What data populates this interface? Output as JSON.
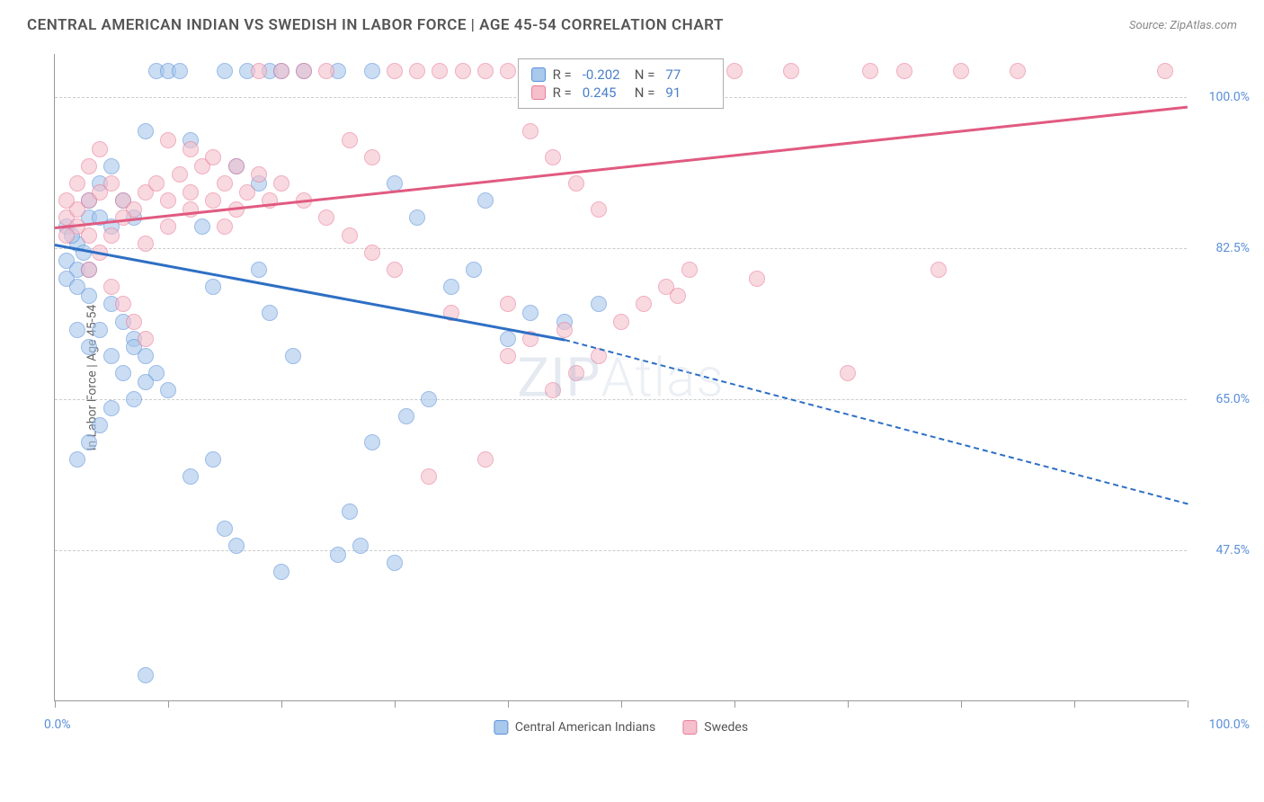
{
  "title": "CENTRAL AMERICAN INDIAN VS SWEDISH IN LABOR FORCE | AGE 45-54 CORRELATION CHART",
  "source": "Source: ZipAtlas.com",
  "yaxis_title": "In Labor Force | Age 45-54",
  "watermark": "ZIPAtlas",
  "chart": {
    "type": "scatter-correlation",
    "xlim": [
      0,
      100
    ],
    "ylim": [
      30,
      105
    ],
    "xtick_positions": [
      0,
      10,
      20,
      30,
      40,
      50,
      60,
      70,
      80,
      90,
      100
    ],
    "yticks": [
      {
        "value": 100.0,
        "label": "100.0%"
      },
      {
        "value": 82.5,
        "label": "82.5%"
      },
      {
        "value": 65.0,
        "label": "65.0%"
      },
      {
        "value": 47.5,
        "label": "47.5%"
      }
    ],
    "xlabel_min": "0.0%",
    "xlabel_max": "100.0%",
    "background_color": "#ffffff",
    "grid_color": "#cccccc",
    "tick_color": "#5a8fd8",
    "marker_size": 18,
    "marker_opacity": 0.6,
    "line_width": 2.5
  },
  "series": [
    {
      "name": "Central American Indians",
      "color_fill": "#a8c8ec",
      "color_border": "#5a8fd8",
      "trend_color": "#2e6fc4",
      "R": "-0.202",
      "N": "77",
      "trend": {
        "x1": 0,
        "y1": 83,
        "x2": 45,
        "y2": 72,
        "x2_dash": 100,
        "y2_dash": 53
      },
      "points": [
        [
          1,
          85
        ],
        [
          2,
          83
        ],
        [
          1,
          81
        ],
        [
          2,
          80
        ],
        [
          3,
          86
        ],
        [
          1.5,
          84
        ],
        [
          2.5,
          82
        ],
        [
          3,
          80
        ],
        [
          1,
          79
        ],
        [
          2,
          78
        ],
        [
          3,
          77
        ],
        [
          4,
          86
        ],
        [
          5,
          85
        ],
        [
          3,
          88
        ],
        [
          4,
          90
        ],
        [
          5,
          92
        ],
        [
          6,
          88
        ],
        [
          7,
          86
        ],
        [
          8,
          96
        ],
        [
          9,
          103
        ],
        [
          10,
          103
        ],
        [
          11,
          103
        ],
        [
          12,
          95
        ],
        [
          13,
          85
        ],
        [
          14,
          78
        ],
        [
          15,
          103
        ],
        [
          16,
          92
        ],
        [
          17,
          103
        ],
        [
          18,
          90
        ],
        [
          19,
          103
        ],
        [
          7,
          72
        ],
        [
          8,
          70
        ],
        [
          9,
          68
        ],
        [
          5,
          76
        ],
        [
          6,
          74
        ],
        [
          7,
          71
        ],
        [
          8,
          67
        ],
        [
          10,
          66
        ],
        [
          4,
          73
        ],
        [
          5,
          70
        ],
        [
          6,
          68
        ],
        [
          7,
          65
        ],
        [
          3,
          71
        ],
        [
          2,
          73
        ],
        [
          15,
          50
        ],
        [
          16,
          48
        ],
        [
          20,
          45
        ],
        [
          25,
          47
        ],
        [
          26,
          52
        ],
        [
          27,
          48
        ],
        [
          30,
          46
        ],
        [
          28,
          60
        ],
        [
          31,
          63
        ],
        [
          33,
          65
        ],
        [
          35,
          78
        ],
        [
          37,
          80
        ],
        [
          38,
          88
        ],
        [
          40,
          72
        ],
        [
          42,
          75
        ],
        [
          20,
          103
        ],
        [
          22,
          103
        ],
        [
          25,
          103
        ],
        [
          28,
          103
        ],
        [
          30,
          90
        ],
        [
          32,
          86
        ],
        [
          18,
          80
        ],
        [
          19,
          75
        ],
        [
          21,
          70
        ],
        [
          8,
          33
        ],
        [
          3,
          60
        ],
        [
          2,
          58
        ],
        [
          4,
          62
        ],
        [
          5,
          64
        ],
        [
          12,
          56
        ],
        [
          14,
          58
        ],
        [
          45,
          74
        ],
        [
          48,
          76
        ]
      ]
    },
    {
      "name": "Swedes",
      "color_fill": "#f5c0cc",
      "color_border": "#e87a98",
      "trend_color": "#e15a80",
      "R": "0.245",
      "N": "91",
      "trend": {
        "x1": 0,
        "y1": 85,
        "x2": 100,
        "y2": 99
      },
      "points": [
        [
          1,
          86
        ],
        [
          2,
          85
        ],
        [
          3,
          84
        ],
        [
          2,
          87
        ],
        [
          3,
          88
        ],
        [
          4,
          89
        ],
        [
          5,
          90
        ],
        [
          6,
          88
        ],
        [
          7,
          87
        ],
        [
          8,
          89
        ],
        [
          9,
          90
        ],
        [
          10,
          88
        ],
        [
          11,
          91
        ],
        [
          12,
          89
        ],
        [
          13,
          92
        ],
        [
          14,
          88
        ],
        [
          15,
          90
        ],
        [
          16,
          87
        ],
        [
          17,
          89
        ],
        [
          18,
          91
        ],
        [
          19,
          88
        ],
        [
          20,
          90
        ],
        [
          3,
          80
        ],
        [
          4,
          82
        ],
        [
          5,
          84
        ],
        [
          6,
          86
        ],
        [
          8,
          83
        ],
        [
          10,
          85
        ],
        [
          12,
          87
        ],
        [
          15,
          85
        ],
        [
          18,
          103
        ],
        [
          20,
          103
        ],
        [
          22,
          103
        ],
        [
          24,
          103
        ],
        [
          26,
          95
        ],
        [
          28,
          93
        ],
        [
          30,
          103
        ],
        [
          32,
          103
        ],
        [
          34,
          103
        ],
        [
          36,
          103
        ],
        [
          38,
          103
        ],
        [
          40,
          103
        ],
        [
          42,
          96
        ],
        [
          44,
          93
        ],
        [
          46,
          90
        ],
        [
          48,
          87
        ],
        [
          50,
          103
        ],
        [
          52,
          76
        ],
        [
          54,
          78
        ],
        [
          56,
          80
        ],
        [
          58,
          103
        ],
        [
          60,
          103
        ],
        [
          45,
          73
        ],
        [
          40,
          76
        ],
        [
          38,
          58
        ],
        [
          35,
          75
        ],
        [
          33,
          56
        ],
        [
          65,
          103
        ],
        [
          70,
          68
        ],
        [
          72,
          103
        ],
        [
          75,
          103
        ],
        [
          78,
          80
        ],
        [
          80,
          103
        ],
        [
          85,
          103
        ],
        [
          98,
          103
        ],
        [
          22,
          88
        ],
        [
          24,
          86
        ],
        [
          26,
          84
        ],
        [
          28,
          82
        ],
        [
          30,
          80
        ],
        [
          10,
          95
        ],
        [
          12,
          94
        ],
        [
          14,
          93
        ],
        [
          16,
          92
        ],
        [
          5,
          78
        ],
        [
          6,
          76
        ],
        [
          7,
          74
        ],
        [
          8,
          72
        ],
        [
          50,
          74
        ],
        [
          55,
          77
        ],
        [
          48,
          70
        ],
        [
          46,
          68
        ],
        [
          44,
          66
        ],
        [
          42,
          72
        ],
        [
          40,
          70
        ],
        [
          62,
          79
        ],
        [
          2,
          90
        ],
        [
          3,
          92
        ],
        [
          4,
          94
        ],
        [
          1,
          88
        ],
        [
          1,
          84
        ]
      ]
    }
  ],
  "legend": {
    "rows": [
      {
        "swatch_fill": "#a8c8ec",
        "swatch_border": "#5a8fd8",
        "R_label": "R =",
        "R_val": "-0.202",
        "N_label": "N =",
        "N_val": "77"
      },
      {
        "swatch_fill": "#f5c0cc",
        "swatch_border": "#e87a98",
        "R_label": "R =",
        "R_val": "0.245",
        "N_label": "N =",
        "N_val": "91"
      }
    ]
  },
  "bottom_legend": [
    {
      "swatch_fill": "#a8c8ec",
      "swatch_border": "#5a8fd8",
      "label": "Central American Indians"
    },
    {
      "swatch_fill": "#f5c0cc",
      "swatch_border": "#e87a98",
      "label": "Swedes"
    }
  ]
}
